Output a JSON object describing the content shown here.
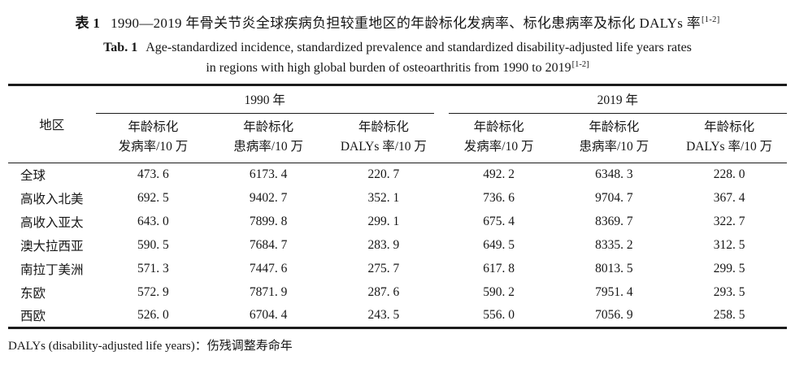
{
  "title": {
    "zh_label": "表 1",
    "zh_text": "1990—2019 年骨关节炎全球疾病负担较重地区的年龄标化发病率、标化患病率及标化 DALYs 率",
    "zh_sup": "[1-2]",
    "en_label": "Tab. 1",
    "en_line1": "Age-standardized incidence, standardized prevalence and standardized disability-adjusted life years rates",
    "en_line2": "in regions with high global burden of osteoarthritis from 1990 to 2019",
    "en_sup": "[1-2]"
  },
  "table": {
    "region_header": "地区",
    "year_groups": [
      {
        "label": "1990 年"
      },
      {
        "label": "2019 年"
      }
    ],
    "sub_headers": [
      {
        "line1": "年龄标化",
        "line2": "发病率/10 万"
      },
      {
        "line1": "年龄标化",
        "line2": "患病率/10 万"
      },
      {
        "line1": "年龄标化",
        "line2": "DALYs 率/10 万"
      },
      {
        "line1": "年龄标化",
        "line2": "发病率/10 万"
      },
      {
        "line1": "年龄标化",
        "line2": "患病率/10 万"
      },
      {
        "line1": "年龄标化",
        "line2": "DALYs 率/10 万"
      }
    ],
    "rows": [
      {
        "region": "全球",
        "values": [
          "473. 6",
          "6173. 4",
          "220. 7",
          "492. 2",
          "6348. 3",
          "228. 0"
        ]
      },
      {
        "region": "高收入北美",
        "values": [
          "692. 5",
          "9402. 7",
          "352. 1",
          "736. 6",
          "9704. 7",
          "367. 4"
        ]
      },
      {
        "region": "高收入亚太",
        "values": [
          "643. 0",
          "7899. 8",
          "299. 1",
          "675. 4",
          "8369. 7",
          "322. 7"
        ]
      },
      {
        "region": "澳大拉西亚",
        "values": [
          "590. 5",
          "7684. 7",
          "283. 9",
          "649. 5",
          "8335. 2",
          "312. 5"
        ]
      },
      {
        "region": "南拉丁美洲",
        "values": [
          "571. 3",
          "7447. 6",
          "275. 7",
          "617. 8",
          "8013. 5",
          "299. 5"
        ]
      },
      {
        "region": "东欧",
        "values": [
          "572. 9",
          "7871. 9",
          "287. 6",
          "590. 2",
          "7951. 4",
          "293. 5"
        ]
      },
      {
        "region": "西欧",
        "values": [
          "526. 0",
          "6704. 4",
          "243. 5",
          "556. 0",
          "7056. 9",
          "258. 5"
        ]
      }
    ]
  },
  "footnote": "DALYs (disability-adjusted life years)：伤残调整寿命年"
}
